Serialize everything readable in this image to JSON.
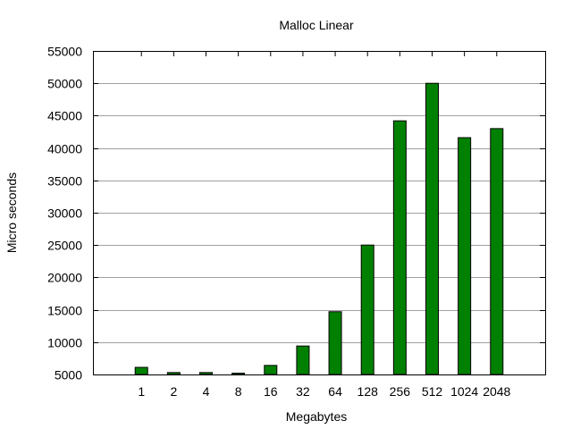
{
  "chart_data": {
    "type": "bar",
    "title": "Malloc Linear",
    "xlabel": "Megabytes",
    "ylabel": "Micro seconds",
    "categories": [
      "1",
      "2",
      "4",
      "8",
      "16",
      "32",
      "64",
      "128",
      "256",
      "512",
      "1024",
      "2048"
    ],
    "values": [
      6100,
      5300,
      5300,
      5200,
      6400,
      9400,
      14700,
      25000,
      44200,
      50000,
      41600,
      43000
    ],
    "ylim": [
      5000,
      55000
    ],
    "yticks": [
      5000,
      10000,
      15000,
      20000,
      25000,
      30000,
      35000,
      40000,
      45000,
      50000,
      55000
    ],
    "grid": "horizontal",
    "bar_color": "#008000",
    "bar_edge_color": "#000000"
  }
}
